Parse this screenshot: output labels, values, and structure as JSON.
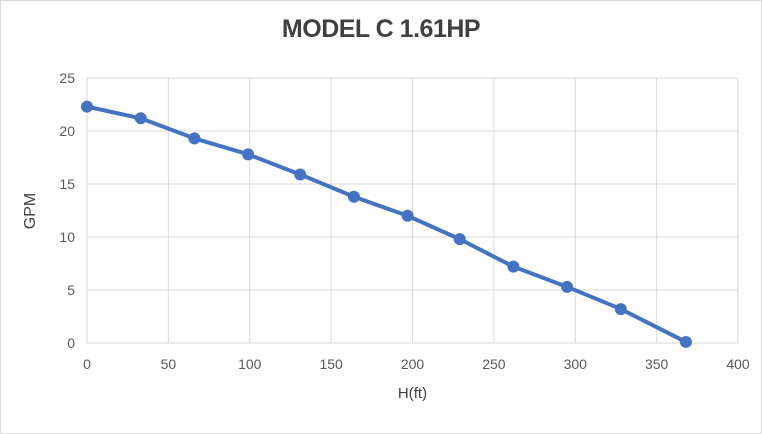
{
  "chart_data": {
    "type": "line",
    "title": "MODEL C 1.61HP",
    "xlabel": "H(ft)",
    "ylabel": "GPM",
    "x": [
      0,
      33,
      66,
      99,
      131,
      164,
      197,
      229,
      262,
      295,
      328,
      368
    ],
    "y": [
      22.3,
      21.2,
      19.3,
      17.8,
      15.9,
      13.8,
      12.0,
      9.8,
      7.2,
      5.3,
      3.2,
      0.1
    ],
    "xlim": [
      0,
      400
    ],
    "ylim": [
      0,
      25
    ],
    "xticks": [
      0,
      50,
      100,
      150,
      200,
      250,
      300,
      350,
      400
    ],
    "yticks": [
      0,
      5,
      10,
      15,
      20,
      25
    ],
    "grid": true,
    "legend": "none",
    "marker": "circle",
    "colors": {
      "series": "#4472C4",
      "grid": "#D9D9D9",
      "tick_label": "#595959",
      "title": "#404040",
      "axis_label": "#404040",
      "frame_border": "#D9D9D9",
      "background": "#FFFFFF"
    }
  }
}
